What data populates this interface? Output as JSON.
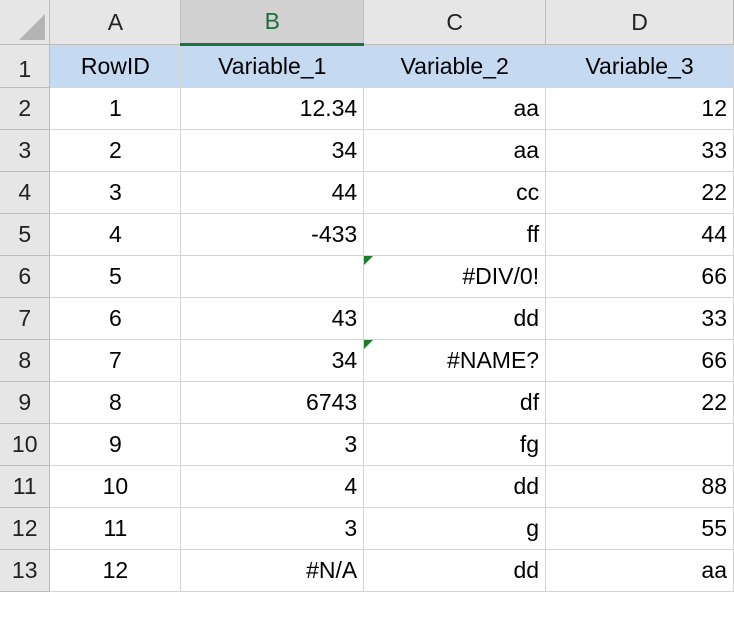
{
  "columns": [
    "A",
    "B",
    "C",
    "D"
  ],
  "selected_column": "B",
  "header_row": [
    "RowID",
    "Variable_1",
    "Variable_2",
    "Variable_3"
  ],
  "rows": [
    {
      "n": "2",
      "a": "1",
      "b": "12.34",
      "c": "aa",
      "d": "12"
    },
    {
      "n": "3",
      "a": "2",
      "b": "34",
      "c": "aa",
      "d": "33"
    },
    {
      "n": "4",
      "a": "3",
      "b": "44",
      "c": "cc",
      "d": "22"
    },
    {
      "n": "5",
      "a": "4",
      "b": "-433",
      "c": "ff",
      "d": "44"
    },
    {
      "n": "6",
      "a": "5",
      "b": "",
      "c": "#DIV/0!",
      "d": "66",
      "c_flag": true
    },
    {
      "n": "7",
      "a": "6",
      "b": "43",
      "c": "dd",
      "d": "33"
    },
    {
      "n": "8",
      "a": "7",
      "b": "34",
      "c": "#NAME?",
      "d": "66",
      "c_flag": true
    },
    {
      "n": "9",
      "a": "8",
      "b": "6743",
      "c": "df",
      "d": "22"
    },
    {
      "n": "10",
      "a": "9",
      "b": "3",
      "c": "fg",
      "d": ""
    },
    {
      "n": "11",
      "a": "10",
      "b": "4",
      "c": "dd",
      "d": "88"
    },
    {
      "n": "12",
      "a": "11",
      "b": "3",
      "c": "g",
      "d": "55"
    },
    {
      "n": "13",
      "a": "12",
      "b": "#N/A",
      "c": "dd",
      "d": "aa"
    }
  ],
  "row1_label": "1",
  "colors": {
    "header_fill": "#c5d9f1",
    "selected_col_accent": "#1e7145",
    "error_flag": "#1e7b2e"
  }
}
